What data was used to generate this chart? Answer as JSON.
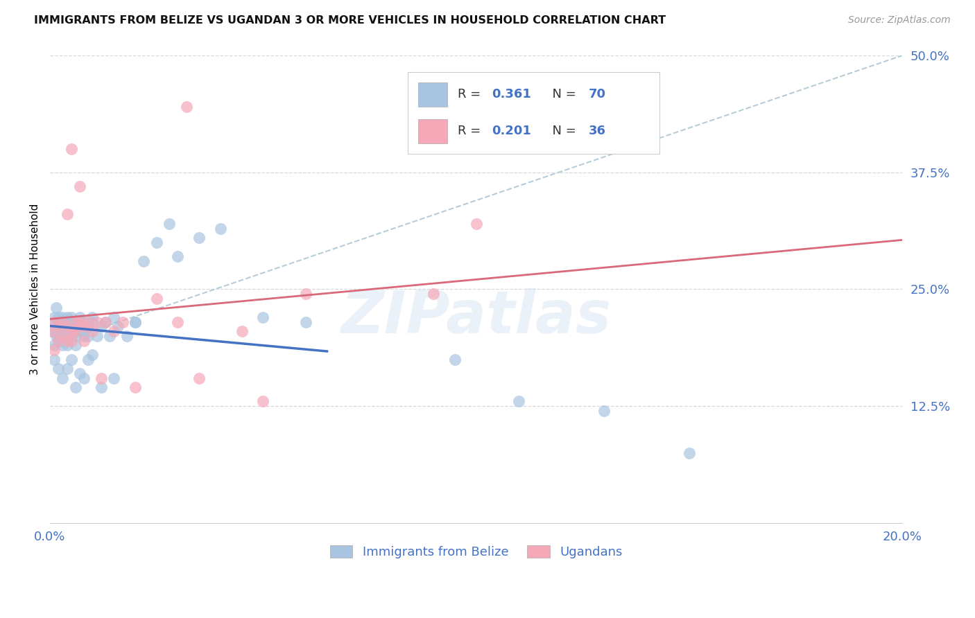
{
  "title": "IMMIGRANTS FROM BELIZE VS UGANDAN 3 OR MORE VEHICLES IN HOUSEHOLD CORRELATION CHART",
  "source": "Source: ZipAtlas.com",
  "ylabel": "3 or more Vehicles in Household",
  "xlim": [
    0.0,
    0.2
  ],
  "ylim": [
    0.0,
    0.5
  ],
  "blue_R": 0.361,
  "blue_N": 70,
  "pink_R": 0.201,
  "pink_N": 36,
  "blue_color": "#a8c4e0",
  "pink_color": "#f4a8b8",
  "blue_line_color": "#4472c4",
  "pink_line_color": "#d9687a",
  "dash_line_color": "#b8ccd8",
  "background_color": "#ffffff",
  "grid_color": "#d8d8d8",
  "watermark": "ZIPatlas",
  "tick_color": "#4472c4",
  "legend_labels": [
    "Immigrants from Belize",
    "Ugandans"
  ],
  "blue_x": [
    0.0005,
    0.001,
    0.001,
    0.001,
    0.0015,
    0.0015,
    0.002,
    0.002,
    0.002,
    0.0025,
    0.0025,
    0.003,
    0.003,
    0.003,
    0.003,
    0.0035,
    0.004,
    0.004,
    0.004,
    0.004,
    0.005,
    0.005,
    0.005,
    0.006,
    0.006,
    0.006,
    0.007,
    0.007,
    0.007,
    0.008,
    0.008,
    0.009,
    0.009,
    0.01,
    0.01,
    0.011,
    0.012,
    0.013,
    0.014,
    0.015,
    0.016,
    0.018,
    0.02,
    0.022,
    0.025,
    0.028,
    0.03,
    0.035,
    0.04,
    0.05,
    0.001,
    0.002,
    0.003,
    0.004,
    0.005,
    0.006,
    0.007,
    0.008,
    0.009,
    0.01,
    0.012,
    0.015,
    0.02,
    0.06,
    0.095,
    0.11,
    0.13,
    0.15,
    0.002,
    0.003
  ],
  "blue_y": [
    0.205,
    0.22,
    0.21,
    0.19,
    0.23,
    0.2,
    0.215,
    0.2,
    0.22,
    0.195,
    0.21,
    0.215,
    0.22,
    0.2,
    0.19,
    0.21,
    0.2,
    0.215,
    0.22,
    0.19,
    0.21,
    0.22,
    0.2,
    0.215,
    0.2,
    0.19,
    0.22,
    0.21,
    0.205,
    0.215,
    0.2,
    0.21,
    0.2,
    0.215,
    0.22,
    0.2,
    0.21,
    0.215,
    0.2,
    0.22,
    0.21,
    0.2,
    0.215,
    0.28,
    0.3,
    0.32,
    0.285,
    0.305,
    0.315,
    0.22,
    0.175,
    0.165,
    0.155,
    0.165,
    0.175,
    0.145,
    0.16,
    0.155,
    0.175,
    0.18,
    0.145,
    0.155,
    0.215,
    0.215,
    0.175,
    0.13,
    0.12,
    0.075,
    0.2,
    0.21
  ],
  "pink_x": [
    0.0005,
    0.001,
    0.001,
    0.002,
    0.002,
    0.003,
    0.003,
    0.004,
    0.004,
    0.005,
    0.005,
    0.006,
    0.006,
    0.007,
    0.008,
    0.008,
    0.009,
    0.01,
    0.011,
    0.012,
    0.013,
    0.015,
    0.017,
    0.02,
    0.025,
    0.03,
    0.035,
    0.045,
    0.05,
    0.06,
    0.032,
    0.005,
    0.007,
    0.004,
    0.09,
    0.1
  ],
  "pink_y": [
    0.205,
    0.215,
    0.185,
    0.195,
    0.21,
    0.2,
    0.215,
    0.195,
    0.21,
    0.205,
    0.195,
    0.215,
    0.205,
    0.215,
    0.195,
    0.21,
    0.215,
    0.205,
    0.215,
    0.155,
    0.215,
    0.205,
    0.215,
    0.145,
    0.24,
    0.215,
    0.155,
    0.205,
    0.13,
    0.245,
    0.445,
    0.4,
    0.36,
    0.33,
    0.245,
    0.32
  ]
}
